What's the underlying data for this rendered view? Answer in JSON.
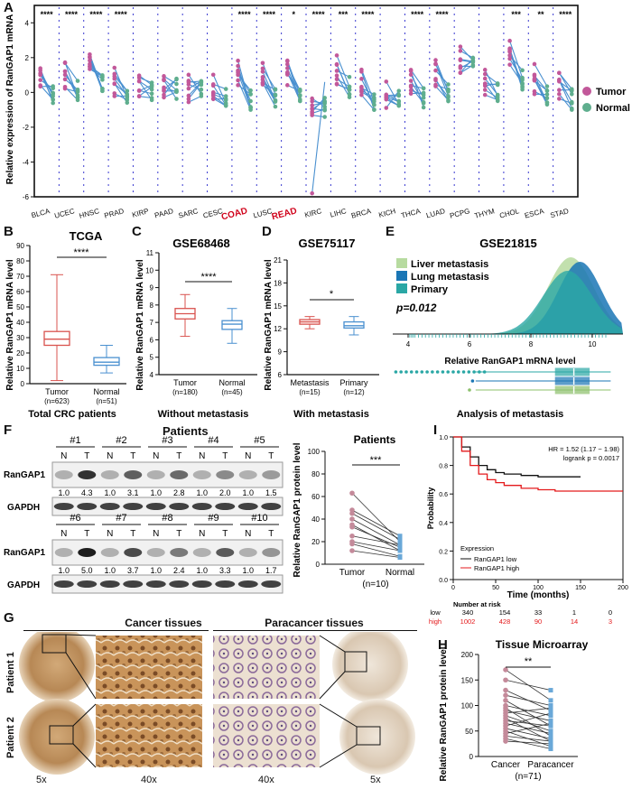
{
  "panel_letters": {
    "A": "A",
    "B": "B",
    "C": "C",
    "D": "D",
    "E": "E",
    "F": "F",
    "G": "G",
    "H": "H",
    "I": "I"
  },
  "colors": {
    "tumor": "#c2589a",
    "normal": "#5fae8e",
    "line": "#4a90d0",
    "box_red": "#d9534f",
    "box_blue": "#4a90d0",
    "teal": "#2aa7a5",
    "lightgreen": "#b7dba0",
    "deepblue": "#1a76b5",
    "km_red": "#e41a1c"
  },
  "panelA": {
    "ylabel": "Relative expression of RanGAP1 mRNA",
    "legend": [
      {
        "label": "Tumor"
      },
      {
        "label": "Normal"
      }
    ],
    "cancers": [
      "BLCA",
      "UCEC",
      "HNSC",
      "PRAD",
      "KIRP",
      "PAAD",
      "SARC",
      "CESC",
      "COAD",
      "LUSC",
      "READ",
      "KIRC",
      "LIHC",
      "BRCA",
      "KICH",
      "THCA",
      "LUAD",
      "PCPG",
      "THYM",
      "CHOL",
      "ESCA",
      "STAD"
    ],
    "highlight": [
      "COAD",
      "READ"
    ],
    "sig": [
      "****",
      "****",
      "****",
      "****",
      "",
      "",
      "",
      "",
      "****",
      "****",
      "*",
      "****",
      "***",
      "****",
      "",
      "****",
      "****",
      "",
      "",
      "***",
      "**",
      "****"
    ]
  },
  "panelB": {
    "title": "TCGA",
    "ylabel": "Relative RanGAP1 mRNA level",
    "sig": "****",
    "groups": [
      {
        "name": "Tumor",
        "n": "(n=623)"
      },
      {
        "name": "Normal",
        "n": "(n=51)"
      }
    ],
    "caption": "Total CRC patients"
  },
  "panelC": {
    "title": "GSE68468",
    "ylabel": "Relative RanGAP1 mRNA level",
    "sig": "****",
    "groups": [
      {
        "name": "Tumor",
        "n": "(n=180)"
      },
      {
        "name": "Normal",
        "n": "(n=45)"
      }
    ],
    "caption": "Without metastasis"
  },
  "panelD": {
    "title": "GSE75117",
    "ylabel": "Relative RanGAP1 mRNA level",
    "sig": "*",
    "groups": [
      {
        "name": "Metastasis",
        "n": "(n=15)"
      },
      {
        "name": "Primary",
        "n": "(n=12)"
      }
    ],
    "caption": "With metastasis"
  },
  "panelE": {
    "title": "GSE21815",
    "legend": [
      "Liver metastasis",
      "Lung metastasis",
      "Primary"
    ],
    "pvalue": "p=0.012",
    "xlabel": "Relative RanGAP1 mRNA level",
    "caption": "Analysis of metastasis"
  },
  "panelF": {
    "header": "Patients",
    "row1_ids": [
      "#1",
      "#2",
      "#3",
      "#4",
      "#5"
    ],
    "row2_ids": [
      "#6",
      "#7",
      "#8",
      "#9",
      "#10"
    ],
    "nt": [
      "N",
      "T"
    ],
    "protein": "RanGAP1",
    "control": "GAPDH",
    "row1_values": [
      "1.0",
      "4.3",
      "1.0",
      "3.1",
      "1.0",
      "2.8",
      "1.0",
      "2.0",
      "1.0",
      "1.5"
    ],
    "row2_values": [
      "1.0",
      "5.0",
      "1.0",
      "3.7",
      "1.0",
      "2.4",
      "1.0",
      "3.3",
      "1.0",
      "1.7"
    ],
    "plot_title": "Patients",
    "plot_ylabel": "Relative RanGAP1 protein level",
    "plot_sig": "***",
    "plot_x": [
      "Tumor",
      "Normal"
    ],
    "plot_n": "(n=10)"
  },
  "panelG": {
    "cancer": "Cancer tissues",
    "paracancer": "Paracancer tissues",
    "patients": [
      "Patient 1",
      "Patient 2"
    ],
    "mags": [
      "5x",
      "40x",
      "40x",
      "5x"
    ]
  },
  "panelH": {
    "title": "Tissue Microarray",
    "ylabel": "Relative RanGAP1 protein level",
    "sig": "**",
    "x": [
      "Cancer",
      "Paracancer"
    ],
    "n": "(n=71)"
  },
  "panelI": {
    "hr": "HR = 1.52 (1.17 − 1.98)",
    "logrank": "logrank p = 0.0017",
    "ylabel": "Probability",
    "xlabel": "Time (months)",
    "legend_title": "Expression",
    "legend": [
      "RanGAP1 low",
      "RanGAP1 high"
    ],
    "risk_title": "Number at risk",
    "risk_low": [
      "low",
      "340",
      "154",
      "33",
      "1",
      "0"
    ],
    "risk_high": [
      "high",
      "1002",
      "428",
      "90",
      "14",
      "3"
    ]
  },
  "chart_data": [
    {
      "type": "scatter",
      "title": "",
      "ylabel": "Relative expression of RanGAP1 mRNA",
      "ylim": [
        -6,
        5
      ],
      "categories": [
        "BLCA",
        "UCEC",
        "HNSC",
        "PRAD",
        "KIRP",
        "PAAD",
        "SARC",
        "CESC",
        "COAD",
        "LUSC",
        "READ",
        "KIRC",
        "LIHC",
        "BRCA",
        "KICH",
        "THCA",
        "LUAD",
        "PCPG",
        "THYM",
        "CHOL",
        "ESCA",
        "STAD"
      ],
      "series": [
        {
          "name": "Tumor",
          "values": [
            1.1,
            0.9,
            2.1,
            0.6,
            0.2,
            0.6,
            0.3,
            0.4,
            1.3,
            1.3,
            1.1,
            -1.2,
            1.3,
            0.6,
            -0.1,
            0.6,
            1.1,
            1.8,
            0.6,
            2.4,
            0.8,
            0.5
          ]
        },
        {
          "name": "Normal",
          "values": [
            -0.1,
            0.1,
            0.4,
            -0.1,
            0.0,
            0.2,
            0.2,
            -0.2,
            -0.4,
            -0.3,
            -0.4,
            -0.9,
            0.3,
            -0.6,
            -0.2,
            -0.3,
            -0.1,
            1.7,
            0.0,
            0.7,
            -0.1,
            -0.4
          ]
        }
      ]
    },
    {
      "type": "box",
      "title": "TCGA",
      "ylabel": "Relative RanGAP1 mRNA level",
      "ylim": [
        0,
        90
      ],
      "categories": [
        "Tumor",
        "Normal"
      ],
      "boxes": [
        {
          "min": 2,
          "q1": 25,
          "median": 29,
          "q3": 34,
          "max": 71
        },
        {
          "min": 7,
          "q1": 12,
          "median": 14,
          "q3": 17,
          "max": 25
        }
      ]
    },
    {
      "type": "box",
      "title": "GSE68468",
      "ylabel": "Relative RanGAP1 mRNA level",
      "ylim": [
        4,
        11
      ],
      "categories": [
        "Tumor",
        "Normal"
      ],
      "boxes": [
        {
          "min": 6.2,
          "q1": 7.2,
          "median": 7.5,
          "q3": 7.8,
          "max": 8.6
        },
        {
          "min": 5.8,
          "q1": 6.6,
          "median": 6.9,
          "q3": 7.1,
          "max": 7.8
        }
      ]
    },
    {
      "type": "box",
      "title": "GSE75117",
      "ylabel": "Relative RanGAP1 mRNA level",
      "ylim": [
        6,
        21
      ],
      "categories": [
        "Metastasis",
        "Primary"
      ],
      "boxes": [
        {
          "min": 12.0,
          "q1": 12.6,
          "median": 12.9,
          "q3": 13.2,
          "max": 13.6
        },
        {
          "min": 11.2,
          "q1": 12.1,
          "median": 12.4,
          "q3": 12.9,
          "max": 13.6
        }
      ]
    },
    {
      "type": "area",
      "title": "GSE21815",
      "xlabel": "Relative RanGAP1 mRNA level",
      "xlim": [
        3.5,
        11
      ],
      "x_ticks": [
        4,
        6,
        8,
        10
      ],
      "series": [
        {
          "name": "Liver metastasis",
          "peak": 9.3
        },
        {
          "name": "Lung metastasis",
          "peak": 9.6
        },
        {
          "name": "Primary",
          "peak": 9.2
        }
      ]
    },
    {
      "type": "line",
      "title": "Patients",
      "ylabel": "Relative RanGAP1 protein level",
      "ylim": [
        0,
        100
      ],
      "categories": [
        "Tumor",
        "Normal"
      ],
      "pairs": [
        [
          63,
          20
        ],
        [
          48,
          25
        ],
        [
          45,
          22
        ],
        [
          40,
          17
        ],
        [
          35,
          12
        ],
        [
          33,
          15
        ],
        [
          25,
          17
        ],
        [
          20,
          12
        ],
        [
          18,
          7
        ],
        [
          12,
          6
        ]
      ]
    },
    {
      "type": "line",
      "title": "Tissue Microarray",
      "ylabel": "Relative RanGAP1 protein level",
      "ylim": [
        0,
        200
      ],
      "categories": [
        "Cancer",
        "Paracancer"
      ],
      "pairs": [
        [
          170,
          110
        ],
        [
          150,
          130
        ],
        [
          130,
          90
        ],
        [
          120,
          100
        ],
        [
          110,
          60
        ],
        [
          100,
          80
        ],
        [
          95,
          40
        ],
        [
          90,
          70
        ],
        [
          85,
          95
        ],
        [
          80,
          50
        ],
        [
          75,
          30
        ],
        [
          70,
          60
        ],
        [
          65,
          45
        ],
        [
          60,
          85
        ],
        [
          55,
          35
        ],
        [
          50,
          20
        ],
        [
          45,
          65
        ],
        [
          40,
          30
        ],
        [
          35,
          15
        ],
        [
          30,
          25
        ]
      ]
    },
    {
      "type": "line",
      "title": "",
      "xlabel": "Time (months)",
      "ylabel": "Probability",
      "xlim": [
        0,
        200
      ],
      "ylim": [
        0,
        1
      ],
      "series": [
        {
          "name": "RanGAP1 low",
          "x": [
            0,
            10,
            20,
            30,
            40,
            50,
            60,
            80,
            100,
            120,
            150
          ],
          "y": [
            1,
            0.93,
            0.86,
            0.8,
            0.77,
            0.75,
            0.74,
            0.73,
            0.72,
            0.72,
            0.72
          ]
        },
        {
          "name": "RanGAP1 high",
          "x": [
            0,
            10,
            20,
            30,
            40,
            50,
            60,
            80,
            100,
            120,
            150,
            200
          ],
          "y": [
            1,
            0.9,
            0.8,
            0.74,
            0.7,
            0.68,
            0.66,
            0.64,
            0.63,
            0.62,
            0.62,
            0.62
          ]
        }
      ]
    }
  ]
}
